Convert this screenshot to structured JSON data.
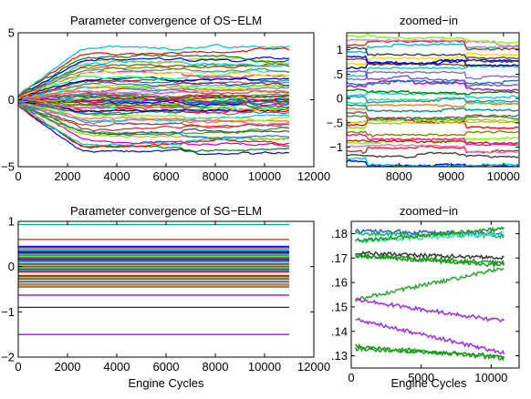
{
  "chart_data": [
    {
      "type": "line",
      "title": "Parameter convergence of OS−ELM",
      "xlabel": "",
      "ylabel": "",
      "xlim": [
        0,
        12000
      ],
      "ylim": [
        -5,
        5
      ],
      "xticks": [
        0,
        2000,
        4000,
        6000,
        8000,
        10000,
        12000
      ],
      "yticks": [
        -5,
        0,
        5
      ],
      "x_range_of_data": [
        0,
        11000
      ],
      "n_series_approx": 60,
      "start_value": 0,
      "final_spread": [
        -3.9,
        3.8
      ],
      "jump_cycles": [
        6600,
        9300
      ]
    },
    {
      "type": "line",
      "title": "zoomed−in",
      "xlabel": "",
      "ylabel": "",
      "xlim": [
        7000,
        10300
      ],
      "ylim": [
        -1.4,
        1.35
      ],
      "xticks": [
        8000,
        9000,
        10000
      ],
      "yticks": [
        -1,
        -0.5,
        0,
        0.5,
        1
      ],
      "jump_cycles": [
        7400,
        9300
      ]
    },
    {
      "type": "line",
      "title": "Parameter convergence of SG−ELM",
      "xlabel": "Engine Cycles",
      "ylabel": "",
      "xlim": [
        0,
        12000
      ],
      "ylim": [
        -2,
        1
      ],
      "xticks": [
        0,
        2000,
        4000,
        6000,
        8000,
        10000,
        12000
      ],
      "yticks": [
        -2,
        -1,
        0,
        1
      ],
      "x_range_of_data": [
        0,
        11000
      ],
      "isolated_levels": [
        0.93,
        0.6,
        -0.63,
        -0.9,
        -1.5
      ],
      "dense_band": [
        -0.45,
        0.45
      ]
    },
    {
      "type": "line",
      "title": "zoomed−in",
      "xlabel": "Engine Cycles",
      "ylabel": "",
      "xlim": [
        0,
        12000
      ],
      "ylim": [
        0.125,
        0.185
      ],
      "xticks": [
        0,
        5000,
        10000
      ],
      "yticks": [
        0.13,
        0.14,
        0.15,
        0.16,
        0.17,
        0.18
      ],
      "series": [
        {
          "color": "#1f5fd8",
          "start": 0.181,
          "end": 0.18
        },
        {
          "color": "#20b06a",
          "start": 0.18,
          "end": 0.179
        },
        {
          "color": "#46e0b8",
          "start": 0.177,
          "end": 0.18
        },
        {
          "color": "#1a9a1a",
          "start": 0.177,
          "end": 0.182
        },
        {
          "color": "#3a3a3a",
          "start": 0.172,
          "end": 0.17
        },
        {
          "color": "#1a9a1a",
          "start": 0.171,
          "end": 0.167
        },
        {
          "color": "#1a9a1a",
          "start": 0.171,
          "end": 0.168
        },
        {
          "color": "#2fa52f",
          "start": 0.153,
          "end": 0.166
        },
        {
          "color": "#a030e0",
          "start": 0.153,
          "end": 0.144
        },
        {
          "color": "#a030e0",
          "start": 0.145,
          "end": 0.131
        },
        {
          "color": "#1a9a1a",
          "start": 0.134,
          "end": 0.129
        },
        {
          "color": "#1a9a1a",
          "start": 0.133,
          "end": 0.13
        }
      ]
    }
  ]
}
